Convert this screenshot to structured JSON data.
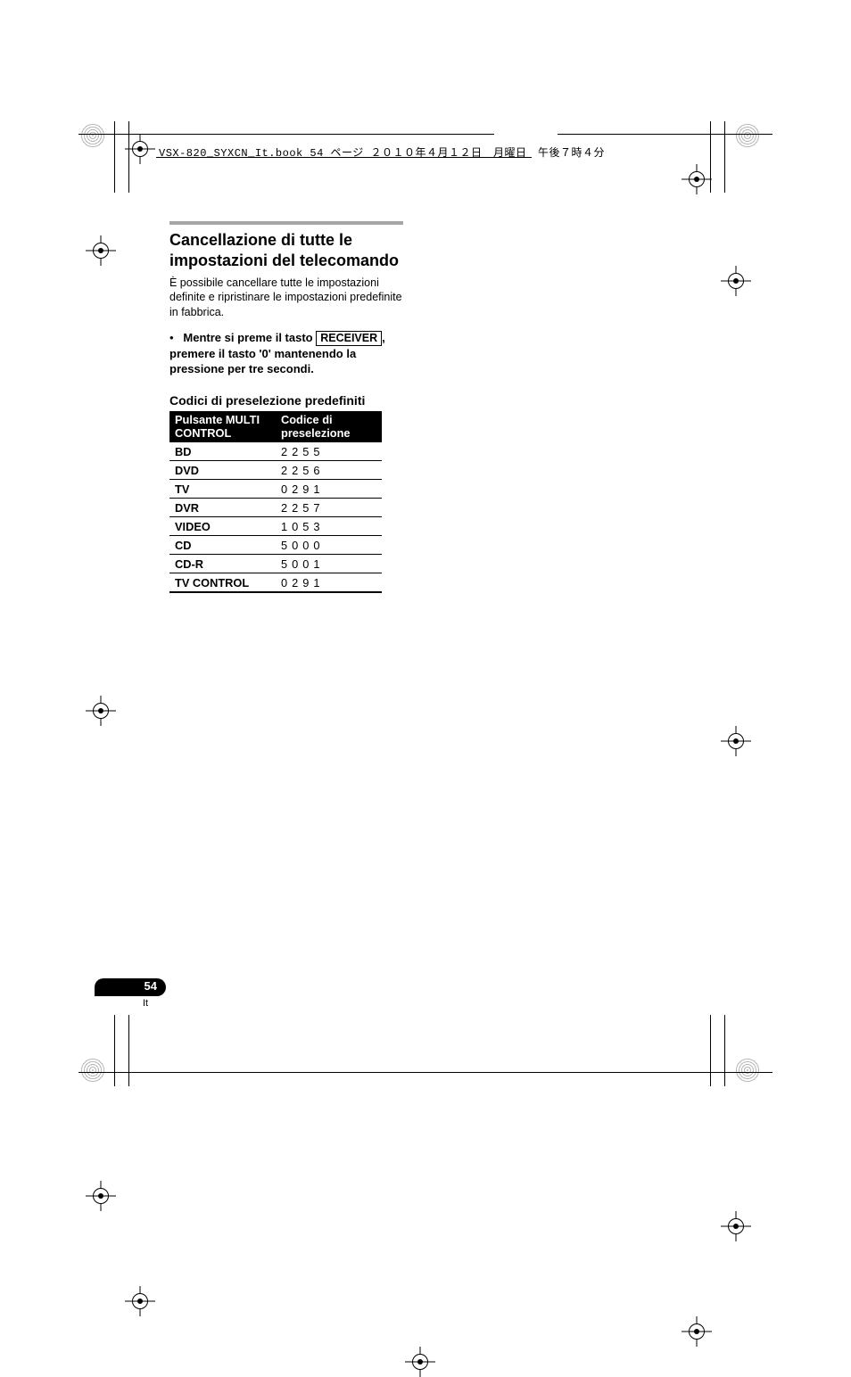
{
  "running_head": "VSX-820_SYXCN_It.book  54 ページ  ２０１０年４月１２日　月曜日　午後７時４分",
  "title": "Cancellazione di tutte le impostazioni del telecomando",
  "intro_para": "È possibile cancellare tutte le impostazioni definite e ripristinare le impostazioni predefinite in fabbrica.",
  "bullet": {
    "marker": "•",
    "lead_before_key": "Mentre si preme il tasto ",
    "keycap": "RECEIVER",
    "after_key": ", premere il tasto '0' mantenendo la pressione per tre secondi."
  },
  "subhead": "Codici di preselezione predefiniti",
  "table": {
    "header": {
      "col1": "Pulsante MULTI CONTROL",
      "col2": "Codice di preselezione"
    },
    "rows": [
      {
        "k": "BD",
        "v": "2255"
      },
      {
        "k": "DVD",
        "v": "2256"
      },
      {
        "k": "TV",
        "v": "0291"
      },
      {
        "k": "DVR",
        "v": "2257"
      },
      {
        "k": "VIDEO",
        "v": "1053"
      },
      {
        "k": "CD",
        "v": "5000"
      },
      {
        "k": "CD-R",
        "v": "5001"
      },
      {
        "k": "TV CONTROL",
        "v": "0291"
      }
    ]
  },
  "page_number": "54",
  "lang": "It",
  "colors": {
    "rule_gray": "#a5a5a5",
    "text": "#000000",
    "bg": "#ffffff"
  }
}
